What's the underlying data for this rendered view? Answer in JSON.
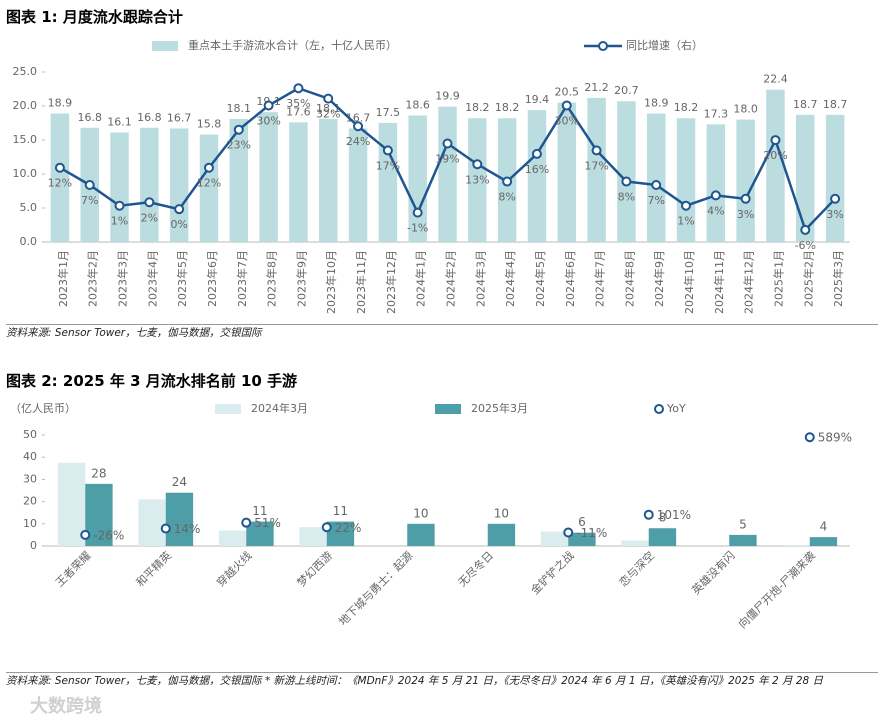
{
  "watermark": "大数跨境",
  "chart_data": [
    {
      "type": "bar",
      "title": "图表 1: 月度流水跟踪合计",
      "categories": [
        "2023年1月",
        "2023年2月",
        "2023年3月",
        "2023年4月",
        "2023年5月",
        "2023年6月",
        "2023年7月",
        "2023年8月",
        "2023年9月",
        "2023年10月",
        "2023年11月",
        "2023年12月",
        "2024年1月",
        "2024年2月",
        "2024年3月",
        "2024年4月",
        "2024年5月",
        "2024年6月",
        "2024年7月",
        "2024年8月",
        "2024年9月",
        "2024年10月",
        "2024年11月",
        "2024年12月",
        "2025年1月",
        "2025年2月",
        "2025年3月"
      ],
      "series": [
        {
          "name": "重点本土手游流水合计（左，十亿人民币）",
          "type": "bar",
          "color": "#bcdde0",
          "values": [
            18.9,
            16.8,
            16.1,
            16.8,
            16.7,
            15.8,
            18.1,
            19.1,
            17.6,
            18.1,
            16.7,
            17.5,
            18.6,
            19.9,
            18.2,
            18.2,
            19.4,
            20.5,
            21.2,
            20.7,
            18.9,
            18.2,
            17.3,
            18.0,
            22.4,
            18.7,
            18.7
          ],
          "value_labels": [
            "18.9",
            "16.8",
            "16.1",
            "16.8",
            "16.7",
            "15.8",
            "18.1",
            "19.1",
            "17.6",
            "18.1",
            "16.7",
            "17.5",
            "18.6",
            "19.9",
            "18.2",
            "18.2",
            "19.4",
            "20.5",
            "21.2",
            "20.7",
            "18.9",
            "18.2",
            "17.3",
            "18.0",
            "22.4",
            "18.7",
            "18.7"
          ]
        },
        {
          "name": "同比增速（右）",
          "type": "line",
          "axis": "y2",
          "color": "#1f5591",
          "values": [
            12,
            7,
            1,
            2,
            0,
            12,
            23,
            30,
            35,
            32,
            24,
            17,
            -1,
            19,
            13,
            8,
            16,
            30,
            17,
            8,
            7,
            1,
            4,
            3,
            20,
            -6,
            3
          ],
          "value_labels": [
            "12%",
            "7%",
            "1%",
            "2%",
            "0%",
            "12%",
            "23%",
            "30%",
            "35%",
            "32%",
            "24%",
            "17%",
            "-1%",
            "19%",
            "13%",
            "8%",
            "16%",
            "30%",
            "17%",
            "8%",
            "7%",
            "1%",
            "4%",
            "3%",
            "20%",
            "-6%",
            "3%"
          ]
        }
      ],
      "ylim": [
        0,
        25
      ],
      "yticks": [
        {
          "value": 0,
          "label": "0.0"
        },
        {
          "value": 5,
          "label": "5.0"
        },
        {
          "value": 10,
          "label": "10.0"
        },
        {
          "value": 15,
          "label": "15.0"
        },
        {
          "value": 20,
          "label": "20.0"
        },
        {
          "value": 25,
          "label": "25.0"
        }
      ],
      "y2lim": [
        -9.5,
        39.7
      ],
      "grid": false,
      "source": "资料来源: Sensor Tower，七麦，伽马数据，交银国际"
    },
    {
      "type": "bar",
      "title": "图表 2: 2025 年 3 月流水排名前 10 手游",
      "y_label": "（亿人民币）",
      "categories": [
        "王者荣耀",
        "和平精英",
        "穿越火线",
        "梦幻西游",
        "地下城与勇士：起源",
        "无尽冬日",
        "金铲铲之战",
        "恋与深空",
        "英雄没有闪",
        "向僵尸开炮-尸潮来袭"
      ],
      "series": [
        {
          "name": "2024年3月",
          "type": "bar",
          "color": "#dbecef",
          "values": [
            37.5,
            21,
            7,
            8.5,
            null,
            null,
            6.5,
            2.5,
            null,
            0.5
          ]
        },
        {
          "name": "2025年3月",
          "type": "bar",
          "color": "#4e9ea8",
          "values": [
            28,
            24,
            11,
            11,
            10,
            10,
            6,
            8,
            5,
            4
          ]
        },
        {
          "name": "YoY",
          "type": "scatter",
          "axis": "y2",
          "color": "#1f5591",
          "values": [
            -26,
            14,
            51,
            22,
            null,
            null,
            -11,
            101,
            null,
            589
          ],
          "value_labels": [
            "-26%",
            "14%",
            "51%",
            "22%",
            null,
            null,
            "-11%",
            "101%",
            null,
            "589%"
          ]
        }
      ],
      "ylim": [
        0,
        50
      ],
      "yticks": [
        0,
        10,
        20,
        30,
        40,
        50
      ],
      "y2lim": [
        -96,
        603
      ],
      "grid": false,
      "source": "资料来源: Sensor Tower，七麦，伽马数据，交银国际 * 新游上线时间：《MDnF》2024 年 5 月 21 日，《无尽冬日》2024 年 6 月 1 日，《英雄没有闪》2025 年 2 月 28 日"
    }
  ]
}
